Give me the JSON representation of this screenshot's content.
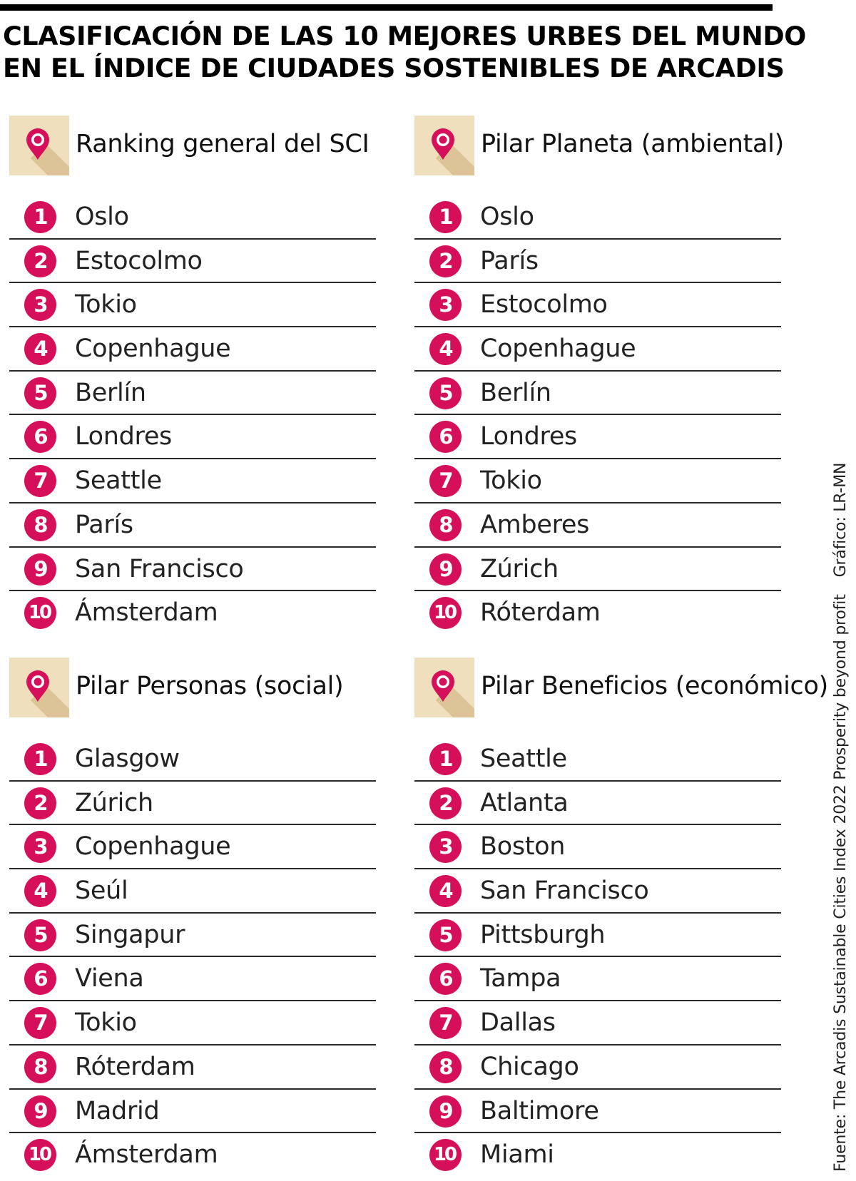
{
  "title": {
    "line1": "CLASIFICACIÓN DE LAS 10 MEJORES URBES DEL MUNDO",
    "line2": "EN EL ÍNDICE DE CIUDADES SOSTENIBLES DE ARCADIS"
  },
  "colors": {
    "accent": "#d60f5a",
    "icon_background": "#f0dfbc",
    "icon_shadow": "#dcc398",
    "rule": "#000000"
  },
  "panels": [
    {
      "icon": "location-pin-icon",
      "title": "Ranking general del SCI",
      "items": [
        {
          "rank": "1",
          "city": "Oslo"
        },
        {
          "rank": "2",
          "city": "Estocolmo"
        },
        {
          "rank": "3",
          "city": "Tokio"
        },
        {
          "rank": "4",
          "city": "Copenhague"
        },
        {
          "rank": "5",
          "city": "Berlín"
        },
        {
          "rank": "6",
          "city": "Londres"
        },
        {
          "rank": "7",
          "city": "Seattle"
        },
        {
          "rank": "8",
          "city": "París"
        },
        {
          "rank": "9",
          "city": "San Francisco"
        },
        {
          "rank": "10",
          "city": "Ámsterdam"
        }
      ]
    },
    {
      "icon": "location-pin-icon",
      "title": "Pilar Planeta (ambiental)",
      "items": [
        {
          "rank": "1",
          "city": "Oslo"
        },
        {
          "rank": "2",
          "city": "París"
        },
        {
          "rank": "3",
          "city": "Estocolmo"
        },
        {
          "rank": "4",
          "city": "Copenhague"
        },
        {
          "rank": "5",
          "city": "Berlín"
        },
        {
          "rank": "6",
          "city": "Londres"
        },
        {
          "rank": "7",
          "city": "Tokio"
        },
        {
          "rank": "8",
          "city": "Amberes"
        },
        {
          "rank": "9",
          "city": "Zúrich"
        },
        {
          "rank": "10",
          "city": "Róterdam"
        }
      ]
    },
    {
      "icon": "location-pin-icon",
      "title": "Pilar Personas (social)",
      "items": [
        {
          "rank": "1",
          "city": "Glasgow"
        },
        {
          "rank": "2",
          "city": "Zúrich"
        },
        {
          "rank": "3",
          "city": "Copenhague"
        },
        {
          "rank": "4",
          "city": "Seúl"
        },
        {
          "rank": "5",
          "city": "Singapur"
        },
        {
          "rank": "6",
          "city": "Viena"
        },
        {
          "rank": "7",
          "city": "Tokio"
        },
        {
          "rank": "8",
          "city": "Róterdam"
        },
        {
          "rank": "9",
          "city": "Madrid"
        },
        {
          "rank": "10",
          "city": "Ámsterdam"
        }
      ]
    },
    {
      "icon": "location-pin-icon",
      "title": "Pilar Beneficios (económico)",
      "items": [
        {
          "rank": "1",
          "city": "Seattle"
        },
        {
          "rank": "2",
          "city": "Atlanta"
        },
        {
          "rank": "3",
          "city": "Boston"
        },
        {
          "rank": "4",
          "city": "San Francisco"
        },
        {
          "rank": "5",
          "city": "Pittsburgh"
        },
        {
          "rank": "6",
          "city": "Tampa"
        },
        {
          "rank": "7",
          "city": "Dallas"
        },
        {
          "rank": "8",
          "city": "Chicago"
        },
        {
          "rank": "9",
          "city": "Baltimore"
        },
        {
          "rank": "10",
          "city": "Miami"
        }
      ]
    }
  ],
  "credits": {
    "source": "Fuente: The Arcadis Sustainable Cities Index 2022 Prosperity beyond profit",
    "graphic": "Gráfico: LR-MN"
  }
}
